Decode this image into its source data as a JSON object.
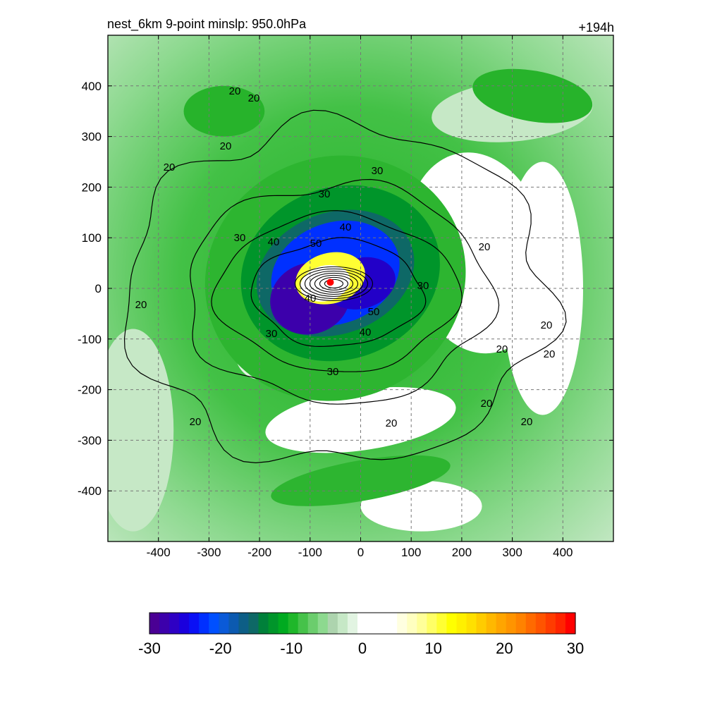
{
  "chart_data": {
    "type": "heatmap",
    "title": "nest_6km  9-point minslp: 950.0hPa",
    "time_label": "+194h",
    "xlim": [
      -500,
      500
    ],
    "ylim": [
      -500,
      500
    ],
    "x_ticks": [
      -400,
      -300,
      -200,
      -100,
      0,
      100,
      200,
      300,
      400
    ],
    "y_ticks": [
      -400,
      -300,
      -200,
      -100,
      0,
      100,
      200,
      300,
      400
    ],
    "x_tick_labels": [
      "-400",
      "-300",
      "-200",
      "-100",
      "0",
      "100",
      "200",
      "300",
      "400"
    ],
    "y_tick_labels": [
      "-400",
      "-300",
      "-200",
      "-100",
      "0",
      "100",
      "200",
      "300",
      "400"
    ],
    "grid": "dashed",
    "colorbar": {
      "orientation": "horizontal",
      "placement": "bottom",
      "range": [
        -30,
        30
      ],
      "ticks": [
        -30,
        -20,
        -10,
        0,
        10,
        20,
        30
      ],
      "tick_labels": [
        "-30",
        "-20",
        "-10",
        "0",
        "10",
        "20",
        "30"
      ],
      "colors": [
        "#4a0094",
        "#3c00ab",
        "#2e00c4",
        "#1a00dd",
        "#0a10f5",
        "#0030ff",
        "#0050ff",
        "#0a5ad8",
        "#0c5ab0",
        "#0d5e86",
        "#0e6866",
        "#00803a",
        "#00952a",
        "#00aa20",
        "#1fb72a",
        "#46c24a",
        "#6bcd6d",
        "#8dd98f",
        "#add4ae",
        "#c6e8c6",
        "#e2f4e2",
        "#ffffff",
        "#ffffff",
        "#ffffff",
        "#ffffff",
        "#ffffe0",
        "#ffffc0",
        "#ffff99",
        "#ffff66",
        "#ffff33",
        "#ffff00",
        "#fff000",
        "#ffe000",
        "#ffcc00",
        "#ffb800",
        "#ffa500",
        "#ff9400",
        "#ff8200",
        "#ff6a00",
        "#ff5400",
        "#ff3c00",
        "#ff2400",
        "#ff0000"
      ]
    },
    "contour_labels": [
      "20",
      "20",
      "20",
      "20",
      "20",
      "20",
      "20",
      "20",
      "20",
      "20",
      "20",
      "20",
      "20",
      "30",
      "30",
      "30",
      "30",
      "30",
      "30",
      "40",
      "40",
      "40",
      "40",
      "50",
      "50"
    ],
    "center_marker": {
      "x": -60,
      "y": 12,
      "color": "#ff0000"
    }
  }
}
